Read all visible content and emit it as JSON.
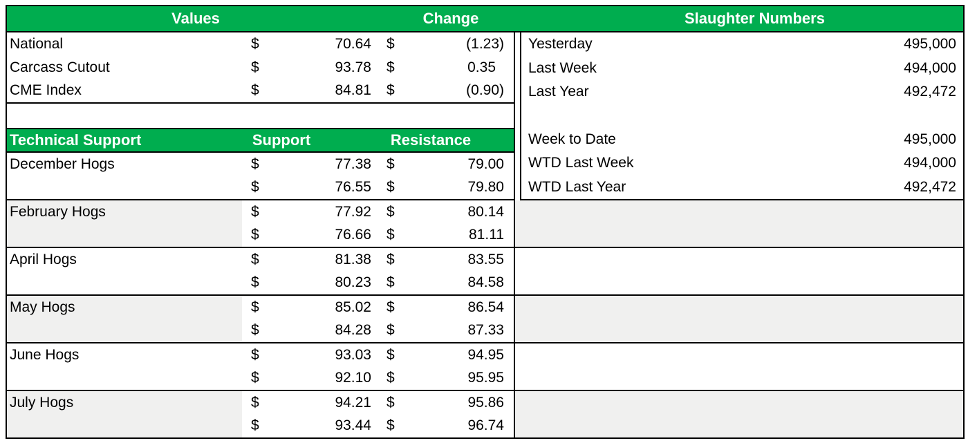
{
  "colors": {
    "header_green": "#00AD4F",
    "band_gray": "#F0F0EF",
    "border_black": "#000000"
  },
  "top_header": {
    "values_label": "Values",
    "change_label": "Change",
    "slaughter_label": "Slaughter Numbers"
  },
  "values_table": {
    "rows": [
      {
        "label": "National",
        "currency": "$",
        "value": "70.64",
        "change_currency": "$",
        "change": "(1.23)",
        "positive": false
      },
      {
        "label": "Carcass Cutout",
        "currency": "$",
        "value": "93.78",
        "change_currency": "$",
        "change": "0.35",
        "positive": true
      },
      {
        "label": "CME Index",
        "currency": "$",
        "value": "84.81",
        "change_currency": "$",
        "change": "(0.90)",
        "positive": false
      }
    ]
  },
  "technical_table": {
    "header": {
      "title": "Technical Support",
      "support_label": "Support",
      "resistance_label": "Resistance"
    },
    "groups": [
      {
        "label": "December Hogs",
        "shaded": false,
        "rows": [
          {
            "support_currency": "$",
            "support": "77.38",
            "resistance_currency": "$",
            "resistance": "79.00"
          },
          {
            "support_currency": "$",
            "support": "76.55",
            "resistance_currency": "$",
            "resistance": "79.80"
          }
        ]
      },
      {
        "label": "February Hogs",
        "shaded": true,
        "rows": [
          {
            "support_currency": "$",
            "support": "77.92",
            "resistance_currency": "$",
            "resistance": "80.14"
          },
          {
            "support_currency": "$",
            "support": "76.66",
            "resistance_currency": "$",
            "resistance": "81.11"
          }
        ]
      },
      {
        "label": "April Hogs",
        "shaded": false,
        "rows": [
          {
            "support_currency": "$",
            "support": "81.38",
            "resistance_currency": "$",
            "resistance": "83.55"
          },
          {
            "support_currency": "$",
            "support": "80.23",
            "resistance_currency": "$",
            "resistance": "84.58"
          }
        ]
      },
      {
        "label": "May Hogs",
        "shaded": true,
        "rows": [
          {
            "support_currency": "$",
            "support": "85.02",
            "resistance_currency": "$",
            "resistance": "86.54"
          },
          {
            "support_currency": "$",
            "support": "84.28",
            "resistance_currency": "$",
            "resistance": "87.33"
          }
        ]
      },
      {
        "label": "June Hogs",
        "shaded": false,
        "rows": [
          {
            "support_currency": "$",
            "support": "93.03",
            "resistance_currency": "$",
            "resistance": "94.95"
          },
          {
            "support_currency": "$",
            "support": "92.10",
            "resistance_currency": "$",
            "resistance": "95.95"
          }
        ]
      },
      {
        "label": "July Hogs",
        "shaded": true,
        "rows": [
          {
            "support_currency": "$",
            "support": "94.21",
            "resistance_currency": "$",
            "resistance": "95.86"
          },
          {
            "support_currency": "$",
            "support": "93.44",
            "resistance_currency": "$",
            "resistance": "96.74"
          }
        ]
      }
    ]
  },
  "slaughter_table": {
    "rows": [
      {
        "label": "Yesterday",
        "value": "495,000"
      },
      {
        "label": "Last Week",
        "value": "494,000"
      },
      {
        "label": "Last Year",
        "value": "492,472"
      },
      {
        "label": "",
        "value": ""
      },
      {
        "label": "Week to Date",
        "value": "495,000"
      },
      {
        "label": "WTD Last Week",
        "value": "494,000"
      },
      {
        "label": "WTD Last Year",
        "value": "492,472"
      }
    ]
  }
}
